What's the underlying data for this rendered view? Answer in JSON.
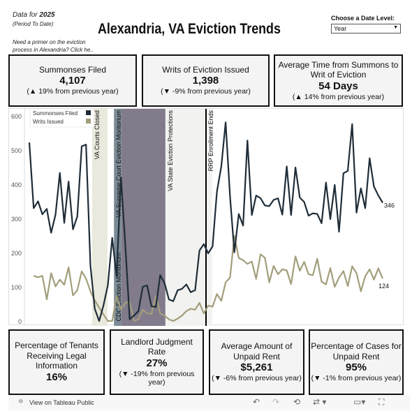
{
  "header": {
    "data_for_prefix": "Data for ",
    "year": "2025",
    "period": "(Period To Date)",
    "primer": "Need a primer on the eviction process in Alexandria? Click he..",
    "title": "Alexandria, VA Eviction Trends",
    "date_level_label": "Choose a Date Level:",
    "date_level_value": "Year"
  },
  "kpis_top": [
    {
      "label": "Summonses Filed",
      "value": "4,107",
      "change": "(▲ 19% from previous year)"
    },
    {
      "label": "Writs of Eviction Issued",
      "value": "1,398",
      "change": "(▼ -9% from previous year)"
    },
    {
      "label": "Average Time from Summons to Writ of Eviction",
      "value": "54 Days",
      "change": "(▲ 14% from previous year)"
    }
  ],
  "kpis_bottom": [
    {
      "label": "Percentage of Tenants Receiving Legal Information",
      "value": "16%",
      "change": ""
    },
    {
      "label": "Landlord Judgment Rate",
      "value": "27%",
      "change": "(▼ -19% from previous year)"
    },
    {
      "label": "Average Amount of Unpaid Rent",
      "value": "$5,261",
      "change": "(▼ -6% from previous year)"
    },
    {
      "label": "Percentage of Cases for Unpaid Rent",
      "value": "95%",
      "change": "(▼ -1% from previous year)"
    }
  ],
  "chart_data": {
    "type": "line",
    "ylim": [
      0,
      600
    ],
    "yticks": [
      "0",
      "100",
      "200",
      "300",
      "400",
      "500",
      "600"
    ],
    "grid": false,
    "legend": "top-left",
    "series": [
      {
        "name": "Summonses Filed",
        "color": "#1f2d38",
        "end_label": "346",
        "values": [
          522,
          330,
          350,
          312,
          328,
          258,
          311,
          433,
          287,
          408,
          268,
          306,
          511,
          516,
          162,
          36,
          0,
          46,
          104,
          243,
          131,
          420,
          223,
          5,
          16,
          29,
          100,
          104,
          43,
          41,
          134,
          111,
          63,
          58,
          90,
          94,
          107,
          84,
          90,
          206,
          225,
          198,
          218,
          378,
          452,
          581,
          364,
          201,
          313,
          279,
          528,
          310,
          367,
          359,
          338,
          336,
          354,
          359,
          311,
          452,
          310,
          449,
          361,
          348,
          308,
          315,
          313,
          286,
          405,
          298,
          398,
          261,
          432,
          439,
          576,
          317,
          388,
          330,
          476,
          393,
          367,
          346
        ]
      },
      {
        "name": "Writs Issued",
        "color": "#a39e7c",
        "end_label": "124",
        "values": [
          null,
          132,
          128,
          132,
          63,
          140,
          101,
          121,
          106,
          157,
          75,
          90,
          145,
          124,
          87,
          60,
          39,
          19,
          0,
          0,
          73,
          33,
          53,
          56,
          0,
          5,
          33,
          22,
          21,
          73,
          22,
          16,
          5,
          0,
          7,
          16,
          29,
          36,
          33,
          53,
          22,
          45,
          42,
          79,
          59,
          113,
          127,
          249,
          184,
          178,
          167,
          174,
          123,
          195,
          185,
          113,
          161,
          137,
          151,
          148,
          108,
          189,
          147,
          173,
          137,
          134,
          182,
          115,
          107,
          155,
          100,
          127,
          146,
          102,
          160,
          140,
          87,
          131,
          151,
          121,
          154,
          124
        ]
      }
    ],
    "annotations": [
      {
        "label": "VA Courts Closed",
        "start": 14.4,
        "end": 17.9,
        "color": "#e9e9dd"
      },
      {
        "label": "VA Supreme Court Eviction Moritorium",
        "start": 19.4,
        "end": 21.1,
        "color": "#7b8b95"
      },
      {
        "label": "CDC Eviction Moritorium",
        "start": 21.1,
        "end": 31.2,
        "color": "#817b8c"
      },
      {
        "label": "VA State Eviction Protections",
        "start": 31.2,
        "end": 41.9,
        "color": "#f2f2f0"
      },
      {
        "label": "RRP Enrollment Ends",
        "start": 40.5,
        "end": 40.5,
        "color": "#000000"
      }
    ]
  },
  "toolbar": {
    "view_label": "View on Tableau Public"
  }
}
